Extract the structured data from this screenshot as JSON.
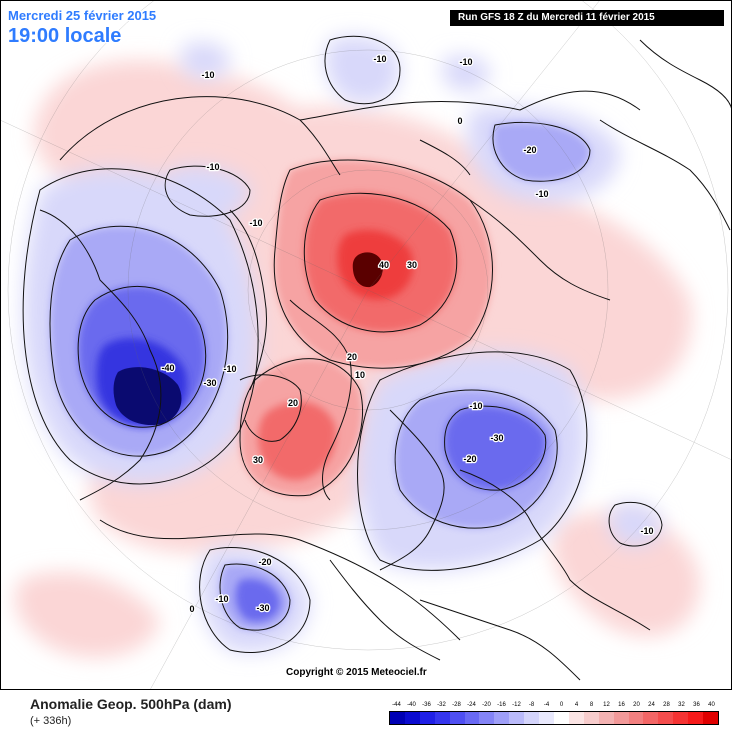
{
  "header": {
    "date": "Mercredi 25 février 2015",
    "time": "19:00 locale",
    "run": "Run GFS 18 Z du Mercredi 11 février 2015"
  },
  "footer": {
    "title": "Anomalie Geop. 500hPa (dam)",
    "forecast": "(+ 336h)",
    "copyright": "Copyright © 2015 Meteociel.fr"
  },
  "legend": {
    "ticks": [
      "-44",
      "-40",
      "-36",
      "-32",
      "-28",
      "-24",
      "-20",
      "-16",
      "-12",
      "-8",
      "-4",
      "0",
      "4",
      "8",
      "12",
      "16",
      "20",
      "24",
      "28",
      "32",
      "36",
      "40"
    ],
    "colors": [
      "#0000b4",
      "#0b0bd0",
      "#1f1fe6",
      "#3535ee",
      "#4f4ff2",
      "#6969f4",
      "#8484f6",
      "#9f9ff8",
      "#babafa",
      "#d4d4fb",
      "#e9e9fd",
      "#ffffff",
      "#fbe4e4",
      "#f7cccc",
      "#f3b2b2",
      "#f29999",
      "#f28080",
      "#f36666",
      "#f44d4d",
      "#f53333",
      "#f61a1a",
      "#e00000"
    ]
  },
  "map": {
    "colors": {
      "neg_light": "#d8d8fa",
      "neg_mid": "#a9a9f6",
      "neg_strong": "#6a6aee",
      "neg_deep": "#3434e0",
      "neg_core": "#0a0a70",
      "pos_light": "#fbd6d6",
      "pos_mid": "#f6a3a3",
      "pos_strong": "#f26a6a",
      "pos_deep": "#ee3e3e",
      "pos_core": "#5a0000",
      "coast": "#111111"
    },
    "labels": [
      {
        "id": "arctic-high-40",
        "text": "40"
      },
      {
        "id": "arctic-high-30",
        "text": "30"
      },
      {
        "id": "greenland-20-a",
        "text": "20"
      },
      {
        "id": "greenland-20-b",
        "text": "20"
      },
      {
        "id": "greenland-10",
        "text": "10"
      },
      {
        "id": "atlantic-30",
        "text": "30"
      },
      {
        "id": "namerica-low-40",
        "text": "-40"
      },
      {
        "id": "namerica-low-30",
        "text": "-30"
      },
      {
        "id": "namerica-low-10",
        "text": "-10"
      },
      {
        "id": "pacific-10-a",
        "text": "-10"
      },
      {
        "id": "pacific-10-b",
        "text": "-10"
      },
      {
        "id": "topleft-10",
        "text": "-10"
      },
      {
        "id": "top-10",
        "text": "-10"
      },
      {
        "id": "topright-10",
        "text": "-10"
      },
      {
        "id": "siberia-20",
        "text": "-20"
      },
      {
        "id": "siberia-10",
        "text": "-10"
      },
      {
        "id": "europe-30",
        "text": "-30"
      },
      {
        "id": "europe-20",
        "text": "-20"
      },
      {
        "id": "europe-10",
        "text": "-10"
      },
      {
        "id": "asia-10",
        "text": "-10"
      },
      {
        "id": "southwest-20",
        "text": "-20"
      },
      {
        "id": "southwest-30",
        "text": "-30"
      },
      {
        "id": "southwest-10",
        "text": "-10"
      },
      {
        "id": "zero-a",
        "text": "0"
      },
      {
        "id": "zero-b",
        "text": "0"
      }
    ]
  }
}
